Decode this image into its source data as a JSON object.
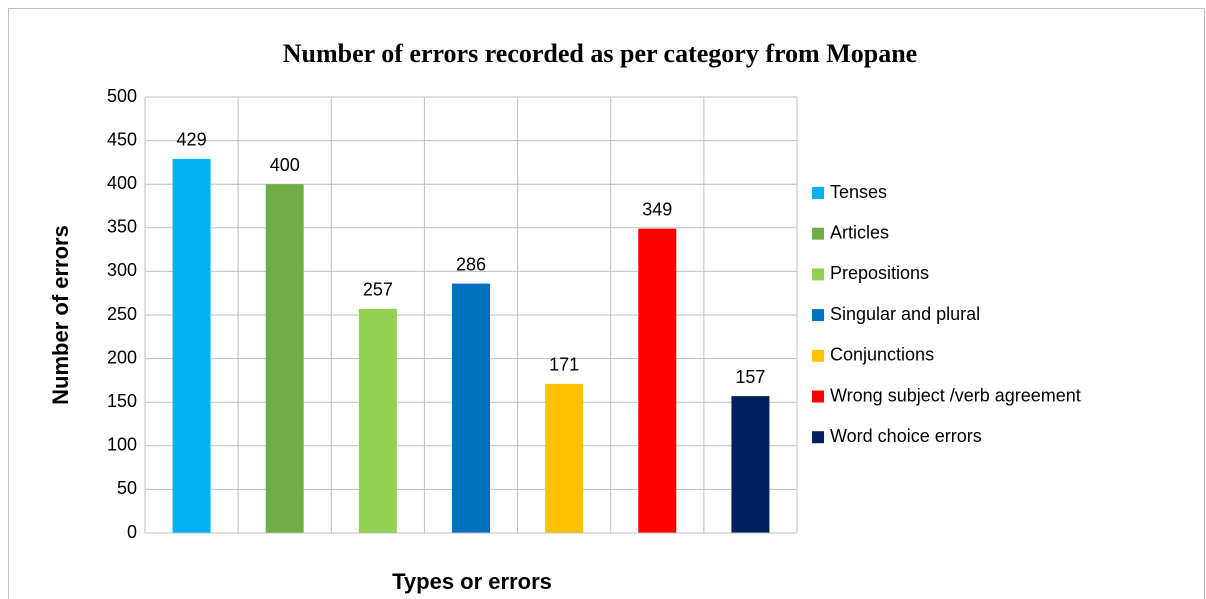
{
  "chart_data": {
    "type": "bar",
    "title": "Number of errors recorded as per category from Mopane",
    "x_label": "Types or errors",
    "y_label": "Number of errors",
    "series": [
      {
        "name": "Tenses",
        "color": "#00b0f0",
        "values": [
          429
        ]
      },
      {
        "name": "Articles",
        "color": "#70ad47",
        "values": [
          400
        ]
      },
      {
        "name": "Prepositions",
        "color": "#92d050",
        "values": [
          257
        ]
      },
      {
        "name": "Singular and plural",
        "color": "#0070c0",
        "values": [
          286
        ]
      },
      {
        "name": "Conjunctions",
        "color": "#ffc000",
        "values": [
          171
        ]
      },
      {
        "name": "Wrong subject /verb agreement",
        "color": "#ff0000",
        "values": [
          349
        ]
      },
      {
        "name": "Word choice errors",
        "color": "#002060",
        "values": [
          157
        ]
      }
    ],
    "ylim": [
      0,
      500
    ],
    "yticks": [
      0,
      50,
      100,
      150,
      200,
      250,
      300,
      350,
      400,
      450,
      500
    ],
    "grid": true,
    "legend": "right"
  }
}
